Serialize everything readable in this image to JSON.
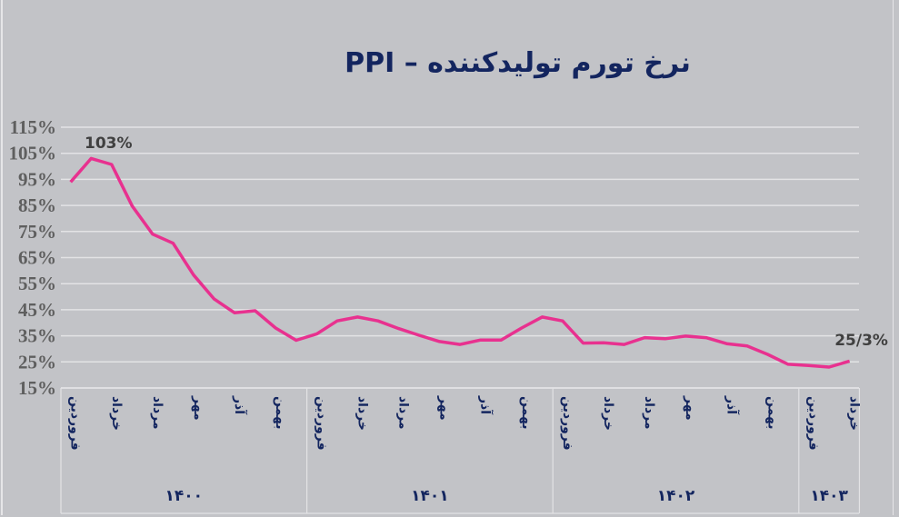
{
  "chart_data": {
    "type": "line",
    "title": "نرخ تورم تولیدکننده – PPI",
    "xlabel": "",
    "ylabel": "",
    "ylim": [
      15,
      115
    ],
    "yticks": [
      "15%",
      "25%",
      "35%",
      "45%",
      "55%",
      "65%",
      "75%",
      "85%",
      "95%",
      "105%",
      "115%"
    ],
    "grid": true,
    "line_color": "#e8318f",
    "groups": [
      {
        "year": "۱۴۰۰",
        "months": 12,
        "tick_labels": [
          "فروردین",
          "خرداد",
          "مرداد",
          "مهر",
          "آذر",
          "بهمن"
        ]
      },
      {
        "year": "۱۴۰۱",
        "months": 12,
        "tick_labels": [
          "فروردین",
          "خرداد",
          "مرداد",
          "مهر",
          "آذر",
          "بهمن"
        ]
      },
      {
        "year": "۱۴۰۲",
        "months": 12,
        "tick_labels": [
          "فروردین",
          "خرداد",
          "مرداد",
          "مهر",
          "آذر",
          "بهمن"
        ]
      },
      {
        "year": "۱۴۰۳",
        "months": 3,
        "tick_labels": [
          "فروردین",
          "خرداد"
        ]
      }
    ],
    "values": [
      94,
      103,
      100.7,
      84.8,
      74,
      70.5,
      58.3,
      49.1,
      43.8,
      44.6,
      38,
      33.3,
      35.7,
      40.7,
      42.2,
      40.7,
      37.8,
      35.2,
      32.8,
      31.7,
      33.4,
      33.4,
      38,
      42.2,
      40.7,
      32.2,
      32.3,
      31.7,
      34.3,
      33.9,
      34.9,
      34.3,
      32,
      31.1,
      27.9,
      24.1,
      23.6,
      23,
      25.3
    ],
    "annotations": [
      {
        "index": 1,
        "text": "103%"
      },
      {
        "index": 38,
        "text": "25/3%"
      }
    ]
  }
}
